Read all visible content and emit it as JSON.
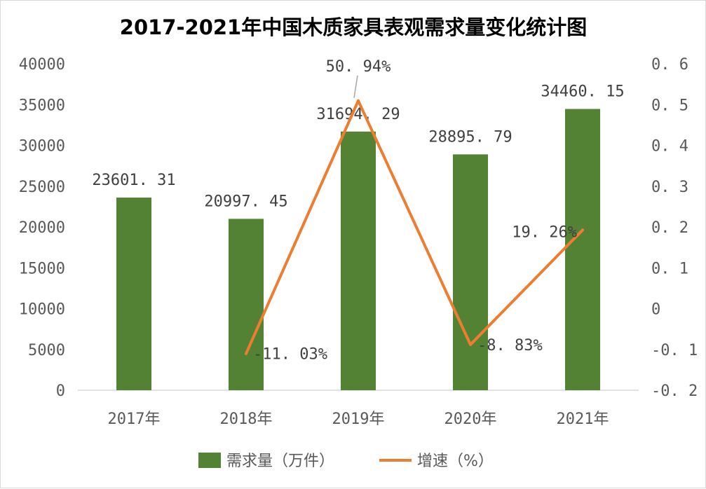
{
  "chart_data": {
    "type": "bar",
    "title": "2017-2021年中国木质家具表观需求量变化统计图",
    "categories": [
      "2017年",
      "2018年",
      "2019年",
      "2020年",
      "2021年"
    ],
    "series": [
      {
        "name": "需求量（万件）",
        "type": "bar",
        "axis": "left",
        "color": "#548235",
        "values": [
          23601.31,
          20997.45,
          31694.29,
          28895.79,
          34460.15
        ],
        "labels": [
          "23601. 31",
          "20997. 45",
          "31694. 29",
          "28895. 79",
          "34460. 15"
        ]
      },
      {
        "name": "增速（%）",
        "type": "line",
        "axis": "right",
        "color": "#ED7D31",
        "values": [
          null,
          -0.1103,
          0.5094,
          -0.0883,
          0.1926
        ],
        "labels": [
          "",
          "-11. 03%",
          "50. 94%",
          "-8. 83%",
          "19. 26%"
        ]
      }
    ],
    "y_left": {
      "ylim": [
        0,
        40000
      ],
      "ticks": [
        "40000",
        "35000",
        "30000",
        "25000",
        "20000",
        "15000",
        "10000",
        "5000",
        "0"
      ]
    },
    "y_right": {
      "ylim": [
        -0.2,
        0.6
      ],
      "ticks": [
        "0. 6",
        "0. 5",
        "0. 4",
        "0. 3",
        "0. 2",
        "0. 1",
        "0",
        "-0. 1",
        "-0. 2"
      ]
    },
    "grid": false,
    "legend": "bottom"
  }
}
